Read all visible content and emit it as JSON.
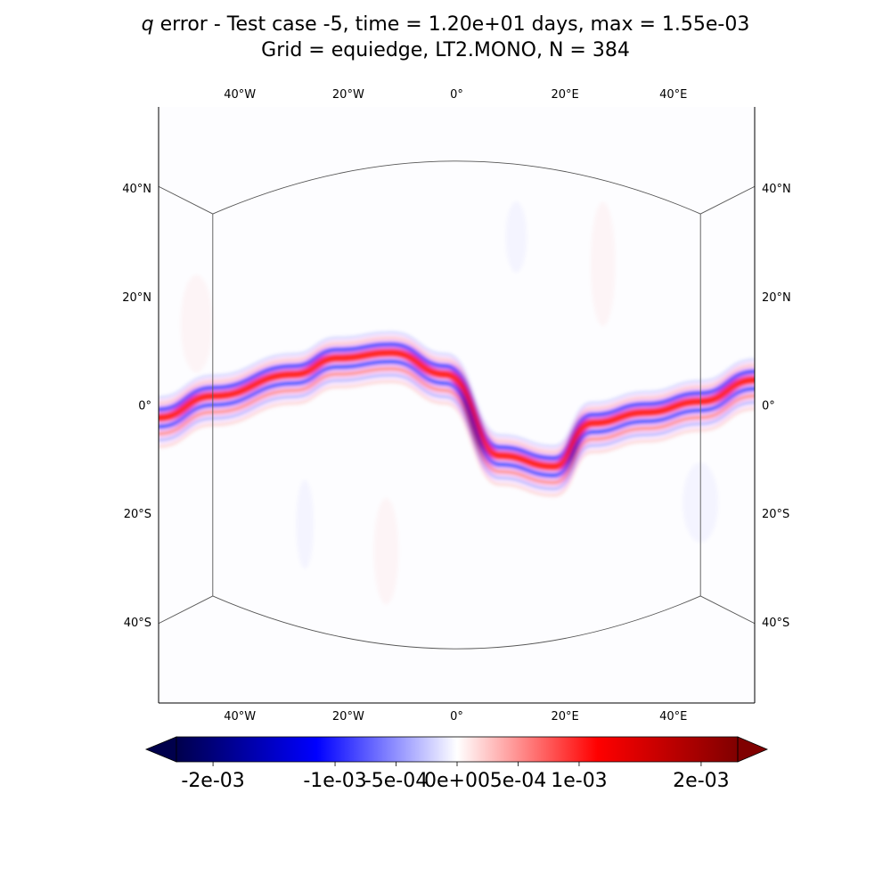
{
  "title": {
    "variable": "q",
    "line1_rest": " error - Test case -5, time = 1.20e+01 days, max = 1.55e-03",
    "line2": "Grid = equiedge, LT2.MONO, N = 384"
  },
  "chart_data": {
    "type": "heatmap",
    "title": "q error - Test case -5, time = 1.20e+01 days, max = 1.55e-03",
    "subtitle": "Grid = equiedge, LT2.MONO, N = 384",
    "projection": "equirectangular",
    "xlim": [
      -55,
      55
    ],
    "ylim": [
      -55,
      55
    ],
    "lon_ticks": [
      {
        "value": -40,
        "label": "40°W"
      },
      {
        "value": -20,
        "label": "20°W"
      },
      {
        "value": 0,
        "label": "0°"
      },
      {
        "value": 20,
        "label": "20°E"
      },
      {
        "value": 40,
        "label": "40°E"
      }
    ],
    "lat_ticks": [
      {
        "value": 40,
        "label": "40°N"
      },
      {
        "value": 20,
        "label": "20°N"
      },
      {
        "value": 0,
        "label": "0°"
      },
      {
        "value": -20,
        "label": "20°S"
      },
      {
        "value": -40,
        "label": "40°S"
      }
    ],
    "colorbar": {
      "colormap": "seismic",
      "range": [
        -0.0023,
        0.0023
      ],
      "extend": "both",
      "ticks": [
        {
          "value": -0.002,
          "label": "-2e-03"
        },
        {
          "value": -0.001,
          "label": "-1e-03"
        },
        {
          "value": -0.0005,
          "label": "-5e-04"
        },
        {
          "value": 0,
          "label": "0e+00"
        },
        {
          "value": 0.0005,
          "label": "5e-04"
        },
        {
          "value": 0.001,
          "label": "1e-03"
        },
        {
          "value": 0.002,
          "label": "2e-03"
        }
      ]
    },
    "field_max": 0.00155,
    "error_band": {
      "centerline_lon": [
        -55,
        -45,
        -30,
        -22,
        -12,
        -2,
        8,
        18,
        25,
        35,
        45,
        55
      ],
      "centerline_lat": [
        -3,
        1,
        5,
        8,
        9,
        5,
        -10,
        -12,
        -4,
        -2,
        0,
        4
      ]
    },
    "grid_overlay": {
      "panel_edges_lon": [
        -45,
        45
      ],
      "panel_edge_lat_at_edges": 35.26,
      "panel_edge_lat_at_center": 45
    }
  },
  "colors": {
    "neg_max": "#00004c",
    "neg_mid": "#0000ff",
    "zero": "#ffffff",
    "pos_mid": "#ff0000",
    "pos_max": "#800000"
  }
}
